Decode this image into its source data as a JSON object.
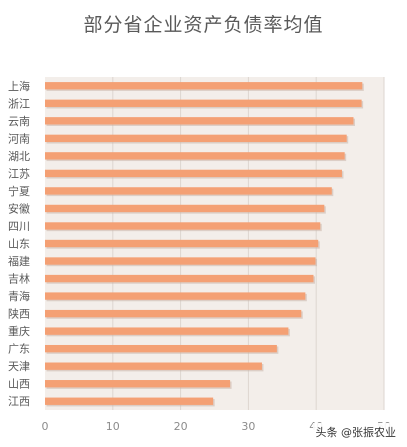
{
  "chart_data": {
    "type": "bar",
    "orientation": "horizontal",
    "title": "部分省企业资产负债率均值",
    "categories": [
      "上海",
      "浙江",
      "云南",
      "河南",
      "湖北",
      "江苏",
      "宁夏",
      "安徽",
      "四川",
      "山东",
      "福建",
      "吉林",
      "青海",
      "陕西",
      "重庆",
      "广东",
      "天津",
      "山西",
      "江西"
    ],
    "values": [
      46.8,
      46.7,
      45.5,
      44.5,
      44.2,
      43.8,
      42.3,
      41.2,
      40.6,
      40.3,
      39.9,
      39.6,
      38.4,
      37.8,
      35.9,
      34.2,
      32.0,
      27.3,
      24.8
    ],
    "xlim": [
      0,
      50
    ],
    "xticks": [
      "0",
      "10",
      "20",
      "30",
      "40",
      "50"
    ],
    "grid": true,
    "colors": {
      "bar": "#f4a074",
      "bar_shadow": "#c9b5a8",
      "plot_background": "#f3eeea",
      "grid": "#ddd6d0"
    }
  },
  "watermark": "头条 @张振农业"
}
